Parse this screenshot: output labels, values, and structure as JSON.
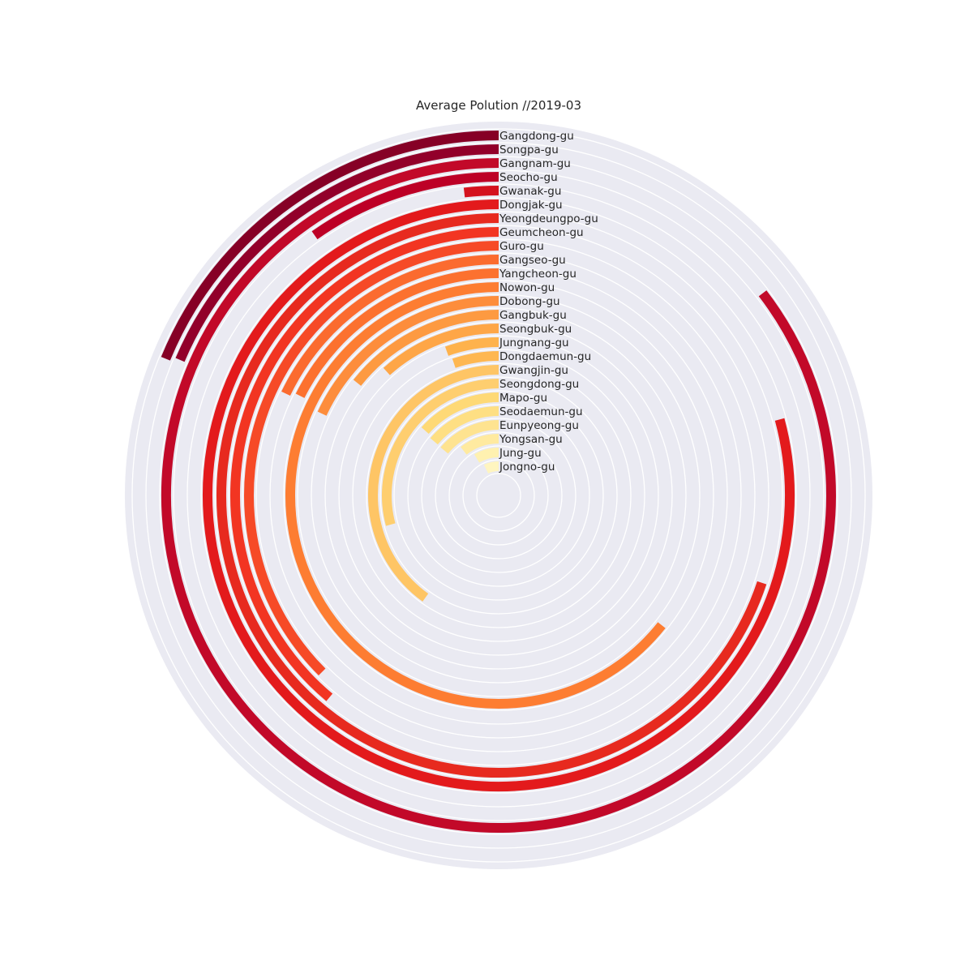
{
  "chart_data": {
    "type": "radial-bar",
    "title": "Average Polution //2019-03",
    "direction": "counterclockwise",
    "start": "top",
    "grid": true,
    "value_unit": "fraction of full circle",
    "categories": [
      "Gangdong-gu",
      "Songpa-gu",
      "Gangnam-gu",
      "Seocho-gu",
      "Gwanak-gu",
      "Dongjak-gu",
      "Yeongdeungpo-gu",
      "Geumcheon-gu",
      "Guro-gu",
      "Gangseo-gu",
      "Yangcheon-gu",
      "Nowon-gu",
      "Dobong-gu",
      "Gangbuk-gu",
      "Seongbuk-gu",
      "Jungnang-gu",
      "Dongdaemun-gu",
      "Gwangjin-gu",
      "Seongdong-gu",
      "Mapo-gu",
      "Seodaemun-gu",
      "Eunpyeong-gu",
      "Yongsan-gu",
      "Jung-gu",
      "Jongno-gu"
    ],
    "values": [
      0.188,
      0.186,
      0.854,
      0.098,
      0.018,
      0.792,
      0.699,
      0.389,
      0.375,
      0.179,
      0.176,
      0.643,
      0.181,
      0.143,
      0.117,
      0.055,
      0.052,
      0.401,
      0.292,
      0.135,
      0.139,
      0.14,
      0.106,
      0.085,
      0.071
    ],
    "colors": [
      "#860026",
      "#92002a",
      "#c20929",
      "#bd0026",
      "#d4121e",
      "#e31a1c",
      "#e72a1f",
      "#f23522",
      "#f64a27",
      "#fb6b2f",
      "#fc712f",
      "#fd7d32",
      "#fd8d3c",
      "#fd9a41",
      "#fea647",
      "#feb24c",
      "#feb751",
      "#fec565",
      "#fece6f",
      "#fed976",
      "#fedf83",
      "#fee390",
      "#ffeaa0",
      "#fff1b0",
      "#fff5c0"
    ]
  }
}
